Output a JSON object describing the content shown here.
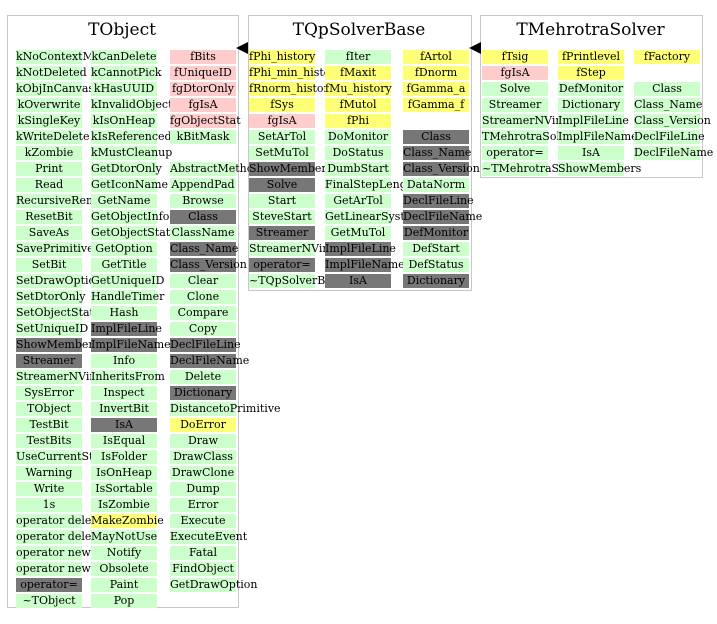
{
  "colors": {
    "method": "#ccffcc",
    "member": "#ffff77",
    "static_member": "#ffcccc",
    "inherited": "#777777",
    "frame": "#c8c8c8"
  },
  "classes": [
    {
      "title": "TObject",
      "columns": [
        [
          {
            "t": "kNoContextMenu",
            "k": "method"
          },
          {
            "t": "kNotDeleted",
            "k": "method"
          },
          {
            "t": "kObjInCanvas",
            "k": "method"
          },
          {
            "t": "kOverwrite",
            "k": "method"
          },
          {
            "t": "kSingleKey",
            "k": "method"
          },
          {
            "t": "kWriteDelete",
            "k": "method"
          },
          {
            "t": "kZombie",
            "k": "method"
          },
          {
            "t": "Print",
            "k": "method"
          },
          {
            "t": "Read",
            "k": "method"
          },
          {
            "t": "RecursiveRemove",
            "k": "method"
          },
          {
            "t": "ResetBit",
            "k": "method"
          },
          {
            "t": "SaveAs",
            "k": "method"
          },
          {
            "t": "SavePrimitive",
            "k": "method"
          },
          {
            "t": "SetBit",
            "k": "method"
          },
          {
            "t": "SetDrawOption",
            "k": "method"
          },
          {
            "t": "SetDtorOnly",
            "k": "method"
          },
          {
            "t": "SetObjectStat",
            "k": "method"
          },
          {
            "t": "SetUniqueID",
            "k": "method"
          },
          {
            "t": "ShowMembers",
            "k": "inherited"
          },
          {
            "t": "Streamer",
            "k": "inherited"
          },
          {
            "t": "StreamerNVirtual",
            "k": "method"
          },
          {
            "t": "SysError",
            "k": "method"
          },
          {
            "t": "TObject",
            "k": "method"
          },
          {
            "t": "TestBit",
            "k": "method"
          },
          {
            "t": "TestBits",
            "k": "method"
          },
          {
            "t": "UseCurrentStyle",
            "k": "method"
          },
          {
            "t": "Warning",
            "k": "method"
          },
          {
            "t": "Write",
            "k": "method"
          },
          {
            "t": "1s",
            "k": "method"
          },
          {
            "t": "operator delete",
            "k": "method"
          },
          {
            "t": "operator delete[]",
            "k": "method"
          },
          {
            "t": "operator new",
            "k": "method"
          },
          {
            "t": "operator new[]",
            "k": "method"
          },
          {
            "t": "operator=",
            "k": "inherited"
          },
          {
            "t": "~TObject",
            "k": "method"
          }
        ],
        [
          {
            "t": "kCanDelete",
            "k": "method"
          },
          {
            "t": "kCannotPick",
            "k": "method"
          },
          {
            "t": "kHasUUID",
            "k": "method"
          },
          {
            "t": "kInvalidObject",
            "k": "method"
          },
          {
            "t": "kIsOnHeap",
            "k": "method"
          },
          {
            "t": "kIsReferenced",
            "k": "method"
          },
          {
            "t": "kMustCleanup",
            "k": "method"
          },
          {
            "t": "GetDtorOnly",
            "k": "method"
          },
          {
            "t": "GetIconName",
            "k": "method"
          },
          {
            "t": "GetName",
            "k": "method"
          },
          {
            "t": "GetObjectInfo",
            "k": "method"
          },
          {
            "t": "GetObjectStat",
            "k": "method"
          },
          {
            "t": "GetOption",
            "k": "method"
          },
          {
            "t": "GetTitle",
            "k": "method"
          },
          {
            "t": "GetUniqueID",
            "k": "method"
          },
          {
            "t": "HandleTimer",
            "k": "method"
          },
          {
            "t": "Hash",
            "k": "method"
          },
          {
            "t": "ImplFileLine",
            "k": "inherited"
          },
          {
            "t": "ImplFileName",
            "k": "inherited"
          },
          {
            "t": "Info",
            "k": "method"
          },
          {
            "t": "InheritsFrom",
            "k": "method"
          },
          {
            "t": "Inspect",
            "k": "method"
          },
          {
            "t": "InvertBit",
            "k": "method"
          },
          {
            "t": "IsA",
            "k": "inherited"
          },
          {
            "t": "IsEqual",
            "k": "method"
          },
          {
            "t": "IsFolder",
            "k": "method"
          },
          {
            "t": "IsOnHeap",
            "k": "method"
          },
          {
            "t": "IsSortable",
            "k": "method"
          },
          {
            "t": "IsZombie",
            "k": "method"
          },
          {
            "t": "MakeZombie",
            "k": "member"
          },
          {
            "t": "MayNotUse",
            "k": "method"
          },
          {
            "t": "Notify",
            "k": "method"
          },
          {
            "t": "Obsolete",
            "k": "method"
          },
          {
            "t": "Paint",
            "k": "method"
          },
          {
            "t": "Pop",
            "k": "method"
          }
        ],
        [
          {
            "t": "fBits",
            "k": "static_member"
          },
          {
            "t": "fUniqueID",
            "k": "static_member"
          },
          {
            "t": "fgDtorOnly",
            "k": "static_member"
          },
          {
            "t": "fgIsA",
            "k": "static_member"
          },
          {
            "t": "fgObjectStat",
            "k": "static_member"
          },
          {
            "t": "kBitMask",
            "k": "method"
          },
          null,
          {
            "t": "AbstractMethod",
            "k": "method"
          },
          {
            "t": "AppendPad",
            "k": "method"
          },
          {
            "t": "Browse",
            "k": "method"
          },
          {
            "t": "Class",
            "k": "inherited"
          },
          {
            "t": "ClassName",
            "k": "method"
          },
          {
            "t": "Class_Name",
            "k": "inherited"
          },
          {
            "t": "Class_Version",
            "k": "inherited"
          },
          {
            "t": "Clear",
            "k": "method"
          },
          {
            "t": "Clone",
            "k": "method"
          },
          {
            "t": "Compare",
            "k": "method"
          },
          {
            "t": "Copy",
            "k": "method"
          },
          {
            "t": "DeclFileLine",
            "k": "inherited"
          },
          {
            "t": "DeclFileName",
            "k": "inherited"
          },
          {
            "t": "Delete",
            "k": "method"
          },
          {
            "t": "Dictionary",
            "k": "inherited"
          },
          {
            "t": "DistancetoPrimitive",
            "k": "method"
          },
          {
            "t": "DoError",
            "k": "member"
          },
          {
            "t": "Draw",
            "k": "method"
          },
          {
            "t": "DrawClass",
            "k": "method"
          },
          {
            "t": "DrawClone",
            "k": "method"
          },
          {
            "t": "Dump",
            "k": "method"
          },
          {
            "t": "Error",
            "k": "method"
          },
          {
            "t": "Execute",
            "k": "method"
          },
          {
            "t": "ExecuteEvent",
            "k": "method"
          },
          {
            "t": "Fatal",
            "k": "method"
          },
          {
            "t": "FindObject",
            "k": "method"
          },
          {
            "t": "GetDrawOption",
            "k": "method"
          }
        ]
      ]
    },
    {
      "title": "TQpSolverBase",
      "columns": [
        [
          {
            "t": "fPhi_history",
            "k": "member"
          },
          {
            "t": "fPhi_min_history",
            "k": "member"
          },
          {
            "t": "fRnorm_history",
            "k": "member"
          },
          {
            "t": "fSys",
            "k": "member"
          },
          {
            "t": "fgIsA",
            "k": "static_member"
          },
          {
            "t": "SetArTol",
            "k": "method"
          },
          {
            "t": "SetMuTol",
            "k": "method"
          },
          {
            "t": "ShowMembers",
            "k": "inherited"
          },
          {
            "t": "Solve",
            "k": "inherited"
          },
          {
            "t": "Start",
            "k": "method"
          },
          {
            "t": "SteveStart",
            "k": "method"
          },
          {
            "t": "Streamer",
            "k": "inherited"
          },
          {
            "t": "StreamerNVirtual",
            "k": "method"
          },
          {
            "t": "operator=",
            "k": "inherited"
          },
          {
            "t": "~TQpSolverBase",
            "k": "method"
          }
        ],
        [
          {
            "t": "fIter",
            "k": "method"
          },
          {
            "t": "fMaxit",
            "k": "member"
          },
          {
            "t": "fMu_history",
            "k": "member"
          },
          {
            "t": "fMutol",
            "k": "member"
          },
          {
            "t": "fPhi",
            "k": "member"
          },
          {
            "t": "DoMonitor",
            "k": "method"
          },
          {
            "t": "DoStatus",
            "k": "method"
          },
          {
            "t": "DumbStart",
            "k": "method"
          },
          {
            "t": "FinalStepLength",
            "k": "method"
          },
          {
            "t": "GetArTol",
            "k": "method"
          },
          {
            "t": "GetLinearSystem",
            "k": "method"
          },
          {
            "t": "GetMuTol",
            "k": "method"
          },
          {
            "t": "ImplFileLine",
            "k": "inherited"
          },
          {
            "t": "ImplFileName",
            "k": "inherited"
          },
          {
            "t": "IsA",
            "k": "inherited"
          }
        ],
        [
          {
            "t": "fArtol",
            "k": "member"
          },
          {
            "t": "fDnorm",
            "k": "member"
          },
          {
            "t": "fGamma_a",
            "k": "member"
          },
          {
            "t": "fGamma_f",
            "k": "member"
          },
          null,
          {
            "t": "Class",
            "k": "inherited"
          },
          {
            "t": "Class_Name",
            "k": "inherited"
          },
          {
            "t": "Class_Version",
            "k": "inherited"
          },
          {
            "t": "DataNorm",
            "k": "method"
          },
          {
            "t": "DeclFileLine",
            "k": "inherited"
          },
          {
            "t": "DeclFileName",
            "k": "inherited"
          },
          {
            "t": "DefMonitor",
            "k": "inherited"
          },
          {
            "t": "DefStart",
            "k": "method"
          },
          {
            "t": "DefStatus",
            "k": "method"
          },
          {
            "t": "Dictionary",
            "k": "inherited"
          }
        ]
      ]
    },
    {
      "title": "TMehrotraSolver",
      "columns": [
        [
          {
            "t": "fTsig",
            "k": "member"
          },
          {
            "t": "fgIsA",
            "k": "static_member"
          },
          {
            "t": "Solve",
            "k": "method"
          },
          {
            "t": "Streamer",
            "k": "method"
          },
          {
            "t": "StreamerNVirtual",
            "k": "method"
          },
          {
            "t": "TMehrotraSolver",
            "k": "method"
          },
          {
            "t": "operator=",
            "k": "method"
          },
          {
            "t": "~TMehrotraSolver",
            "k": "method"
          }
        ],
        [
          {
            "t": "fPrintlevel",
            "k": "member"
          },
          {
            "t": "fStep",
            "k": "member"
          },
          {
            "t": "DefMonitor",
            "k": "method"
          },
          {
            "t": "Dictionary",
            "k": "method"
          },
          {
            "t": "ImplFileLine",
            "k": "method"
          },
          {
            "t": "ImplFileName",
            "k": "method"
          },
          {
            "t": "IsA",
            "k": "method"
          },
          {
            "t": "ShowMembers",
            "k": "method"
          }
        ],
        [
          {
            "t": "fFactory",
            "k": "member"
          },
          null,
          {
            "t": "Class",
            "k": "method"
          },
          {
            "t": "Class_Name",
            "k": "method"
          },
          {
            "t": "Class_Version",
            "k": "method"
          },
          {
            "t": "DeclFileLine",
            "k": "method"
          },
          {
            "t": "DeclFileName",
            "k": "method"
          }
        ]
      ]
    }
  ]
}
